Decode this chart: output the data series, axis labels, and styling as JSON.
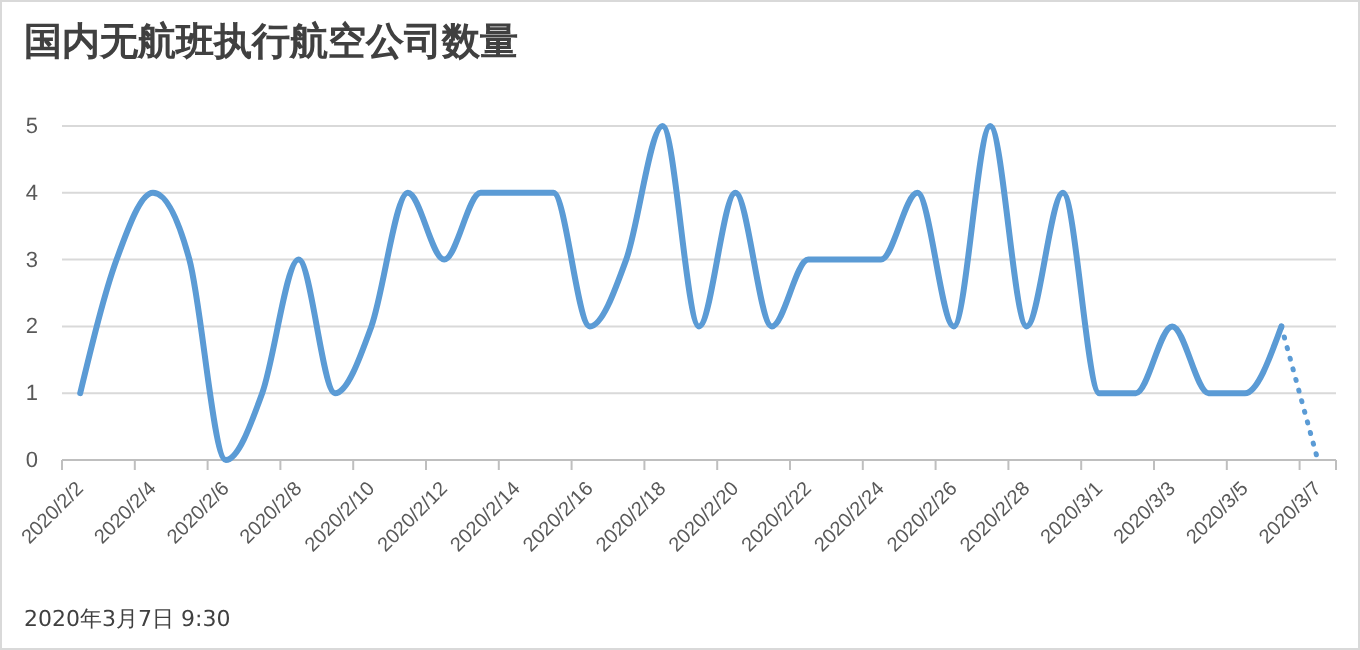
{
  "chart_data": {
    "type": "line",
    "title": "国内无航班执行航空公司数量",
    "categories": [
      "2020/2/2",
      null,
      "2020/2/4",
      null,
      "2020/2/6",
      null,
      "2020/2/8",
      null,
      "2020/2/10",
      null,
      "2020/2/12",
      null,
      "2020/2/14",
      null,
      "2020/2/16",
      null,
      "2020/2/18",
      null,
      "2020/2/20",
      null,
      "2020/2/22",
      null,
      "2020/2/24",
      null,
      "2020/2/26",
      null,
      "2020/2/28",
      null,
      "2020/3/1",
      null,
      "2020/3/3",
      null,
      "2020/3/5",
      null,
      "2020/3/7"
    ],
    "series": [
      {
        "color": "#5b9bd5",
        "line_style": "solid",
        "values": [
          1,
          3,
          4,
          3,
          0,
          1,
          3,
          1,
          2,
          4,
          3,
          4,
          4,
          4,
          2,
          3,
          5,
          2,
          4,
          2,
          3,
          3,
          3,
          4,
          2,
          5,
          2,
          4,
          1,
          1,
          2,
          1,
          1,
          2,
          null
        ]
      },
      {
        "color": "#5b9bd5",
        "line_style": "dotted",
        "values": [
          null,
          null,
          null,
          null,
          null,
          null,
          null,
          null,
          null,
          null,
          null,
          null,
          null,
          null,
          null,
          null,
          null,
          null,
          null,
          null,
          null,
          null,
          null,
          null,
          null,
          null,
          null,
          null,
          null,
          null,
          null,
          null,
          null,
          2,
          0
        ]
      }
    ],
    "ylim": [
      0,
      5
    ],
    "yticks": [
      0,
      1,
      2,
      3,
      4,
      5
    ],
    "grid": "y",
    "annotations": [
      "2020年3月7日 9:30"
    ]
  }
}
